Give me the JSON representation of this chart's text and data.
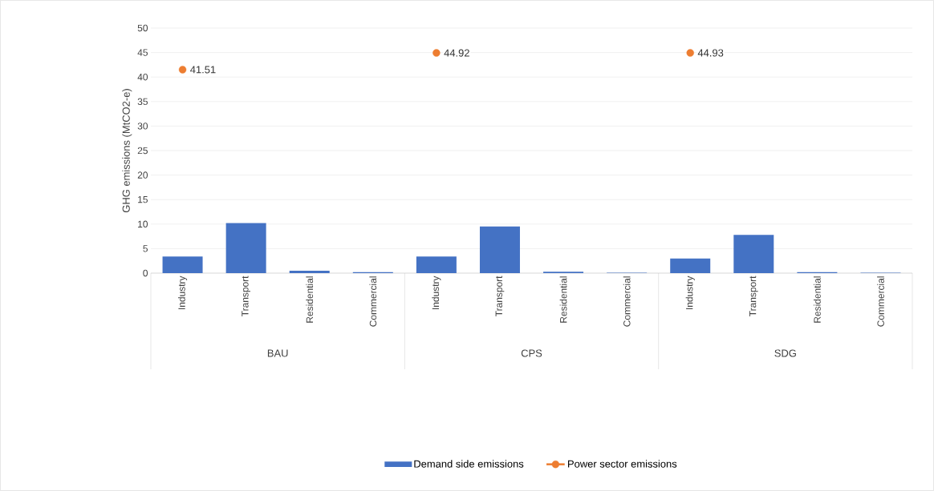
{
  "chart_data": {
    "type": "bar",
    "ylabel": "GHG emissions (MtCO2-e)",
    "categories": [
      "Industry",
      "Transport",
      "Residential",
      "Commercial",
      "Industry",
      "Transport",
      "Residential",
      "Commercial",
      "Industry",
      "Transport",
      "Residential",
      "Commercial"
    ],
    "series": [
      {
        "name": "Demand side emissions",
        "color": "#4472c4",
        "values": [
          3.4,
          10.2,
          0.5,
          0.2,
          3.4,
          9.5,
          0.3,
          0.1,
          3.0,
          7.8,
          0.2,
          0.1
        ]
      },
      {
        "name": "Power sector emissions",
        "type": "scatter",
        "color": "#ed7d31",
        "marker": "circle",
        "values": [
          41.51,
          null,
          null,
          null,
          44.92,
          null,
          null,
          null,
          44.93,
          null,
          null,
          null
        ],
        "value_labels": [
          "41.51",
          null,
          null,
          null,
          "44.92",
          null,
          null,
          null,
          "44.93",
          null,
          null,
          null
        ]
      }
    ],
    "annotations": [
      "BAU",
      "CPS",
      "SDG"
    ],
    "ylim": [
      0,
      50
    ],
    "yticks": [
      0,
      5,
      10,
      15,
      20,
      25,
      30,
      35,
      40,
      45,
      50
    ],
    "grid": "y",
    "legend": "bottom"
  }
}
